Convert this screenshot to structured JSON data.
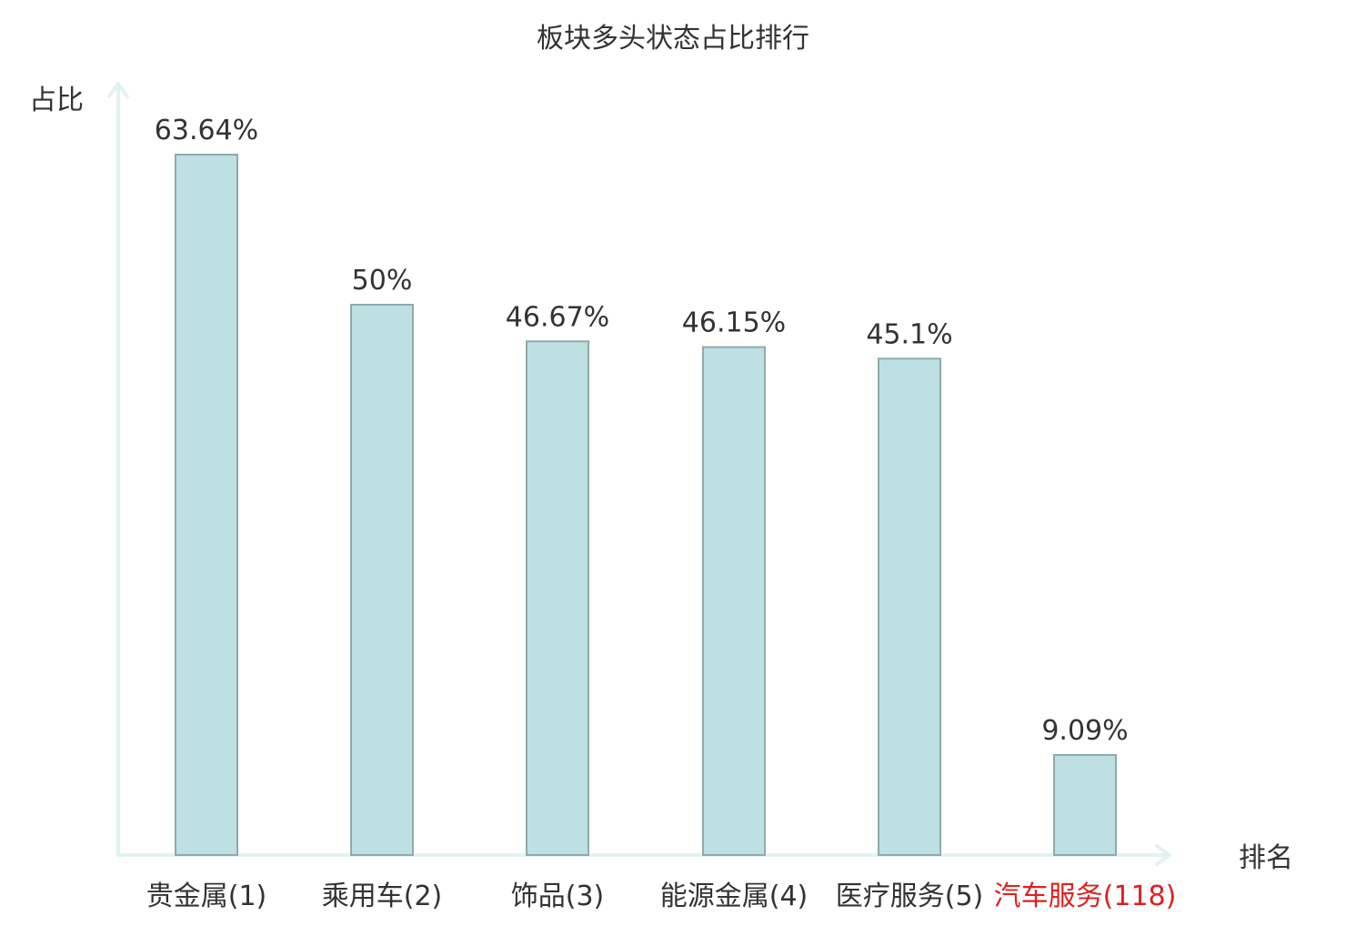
{
  "chart_data": {
    "type": "bar",
    "title": "板块多头状态占比排行",
    "ylabel": "占比",
    "xlabel": "排名",
    "ylim": [
      0,
      70
    ],
    "grid": false,
    "legend": "none",
    "categories": [
      {
        "name": "贵金属",
        "rank": "(1)"
      },
      {
        "name": "乘用车",
        "rank": "(2)"
      },
      {
        "name": "饰品",
        "rank": "(3)"
      },
      {
        "name": "能源金属",
        "rank": "(4)"
      },
      {
        "name": "医疗服务",
        "rank": "(5)"
      },
      {
        "name": "汽车服务",
        "rank": "(118)",
        "highlight": true
      }
    ],
    "values": [
      63.64,
      50,
      46.67,
      46.15,
      45.1,
      9.09
    ],
    "value_labels": [
      "63.64%",
      "50%",
      "46.67%",
      "46.15%",
      "45.1%",
      "9.09%"
    ],
    "colors": {
      "bar_fill": "#bde0e2",
      "bar_stroke": "#8faaac",
      "axis": "#e0f3f0",
      "text": "#333333",
      "highlight": "#e02020"
    }
  }
}
